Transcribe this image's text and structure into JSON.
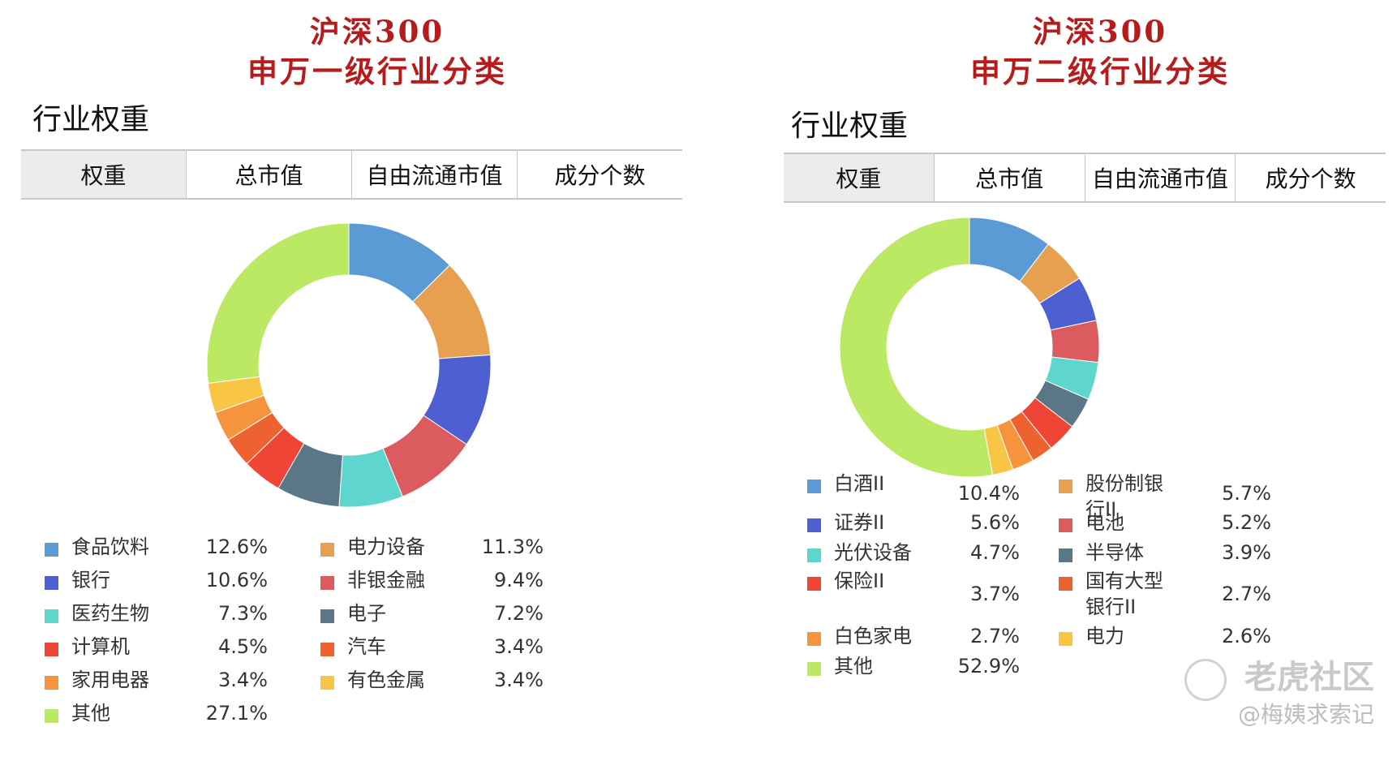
{
  "left_panel": {
    "title_line1": "沪深300",
    "title_line2": "申万一级行业分类",
    "section_title": "行业权重",
    "tabs": [
      "权重",
      "总市值",
      "自由流通市值",
      "成分个数"
    ]
  },
  "right_panel": {
    "title_line1": "沪深300",
    "title_line2": "申万二级行业分类",
    "section_title": "行业权重",
    "tabs": [
      "权重",
      "总市值",
      "自由流通市值",
      "成分个数"
    ]
  },
  "chart_data": [
    {
      "type": "pie",
      "donut": true,
      "slices": [
        {
          "label": "食品饮料",
          "value": 12.6,
          "display": "12.6%",
          "color": "#5b9bd5"
        },
        {
          "label": "电力设备",
          "value": 11.3,
          "display": "11.3%",
          "color": "#e6a04f"
        },
        {
          "label": "银行",
          "value": 10.6,
          "display": "10.6%",
          "color": "#4e5fd1"
        },
        {
          "label": "非银金融",
          "value": 9.4,
          "display": "9.4%",
          "color": "#dc5b5f"
        },
        {
          "label": "医药生物",
          "value": 7.3,
          "display": "7.3%",
          "color": "#5fd6cd"
        },
        {
          "label": "电子",
          "value": 7.2,
          "display": "7.2%",
          "color": "#5b7687"
        },
        {
          "label": "计算机",
          "value": 4.5,
          "display": "4.5%",
          "color": "#ef4536"
        },
        {
          "label": "汽车",
          "value": 3.4,
          "display": "3.4%",
          "color": "#ee6230"
        },
        {
          "label": "家用电器",
          "value": 3.4,
          "display": "3.4%",
          "color": "#f6943d"
        },
        {
          "label": "有色金属",
          "value": 3.4,
          "display": "3.4%",
          "color": "#f8c544"
        },
        {
          "label": "其他",
          "value": 27.1,
          "display": "27.1%",
          "color": "#bce963"
        }
      ]
    },
    {
      "type": "pie",
      "donut": true,
      "slices": [
        {
          "label": "白酒II",
          "value": 10.4,
          "display": "10.4%",
          "color": "#5b9bd5"
        },
        {
          "label": "股份制银行II",
          "value": 5.7,
          "display": "5.7%",
          "color": "#e6a04f"
        },
        {
          "label": "证券II",
          "value": 5.6,
          "display": "5.6%",
          "color": "#4e5fd1"
        },
        {
          "label": "电池",
          "value": 5.2,
          "display": "5.2%",
          "color": "#dc5b5f"
        },
        {
          "label": "光伏设备",
          "value": 4.7,
          "display": "4.7%",
          "color": "#5fd6cd"
        },
        {
          "label": "半导体",
          "value": 3.9,
          "display": "3.9%",
          "color": "#5b7687"
        },
        {
          "label": "保险II",
          "value": 3.7,
          "display": "3.7%",
          "color": "#ef4536"
        },
        {
          "label": "国有大型银行II",
          "value": 2.7,
          "display": "2.7%",
          "color": "#ee6230"
        },
        {
          "label": "白色家电",
          "value": 2.7,
          "display": "2.7%",
          "color": "#f6943d"
        },
        {
          "label": "电力",
          "value": 2.6,
          "display": "2.6%",
          "color": "#f8c544"
        },
        {
          "label": "其他",
          "value": 52.9,
          "display": "52.9%",
          "color": "#bce963"
        }
      ]
    }
  ],
  "watermark": {
    "brand": "老虎社区",
    "handle": "@梅姨求索记"
  }
}
